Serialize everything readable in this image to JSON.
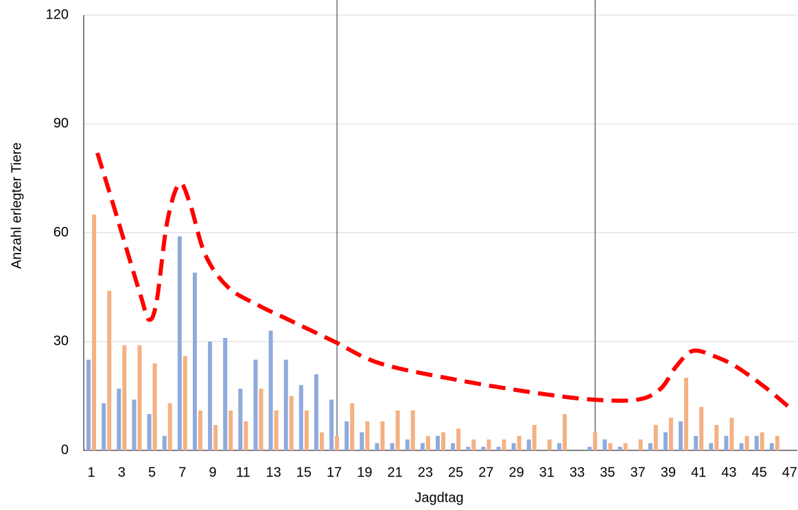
{
  "chart_data": {
    "type": "bar",
    "x_label": "Jagdtag",
    "y_label": "Anzahl erlegter Tiere",
    "categories": [
      "1",
      null,
      "3",
      null,
      "5",
      null,
      "7",
      null,
      "9",
      null,
      "11",
      null,
      "13",
      null,
      "15",
      null,
      "17",
      null,
      "19",
      null,
      "21",
      null,
      "23",
      null,
      "25",
      null,
      "27",
      null,
      "29",
      null,
      "31",
      null,
      "33",
      null,
      "35",
      null,
      "37",
      null,
      "39",
      null,
      "41",
      null,
      "43",
      null,
      "45",
      null,
      "47"
    ],
    "series": [
      {
        "color": "#8faadc",
        "values": [
          25,
          13,
          17,
          14,
          10,
          4,
          59,
          49,
          30,
          31,
          17,
          25,
          33,
          25,
          18,
          21,
          14,
          8,
          5,
          2,
          2,
          3,
          2,
          4,
          2,
          1,
          1,
          1,
          2,
          3,
          0,
          2,
          0,
          1,
          3,
          1,
          0,
          2,
          5,
          8,
          4,
          2,
          4,
          2,
          4,
          2,
          0
        ]
      },
      {
        "color": "#f4b183",
        "values": [
          65,
          44,
          29,
          29,
          24,
          13,
          26,
          11,
          7,
          11,
          8,
          17,
          11,
          15,
          11,
          5,
          4,
          13,
          8,
          8,
          11,
          11,
          4,
          5,
          6,
          3,
          3,
          3,
          4,
          7,
          3,
          10,
          0,
          5,
          2,
          2,
          3,
          7,
          9,
          20,
          12,
          7,
          9,
          4,
          5,
          4,
          0
        ]
      }
    ],
    "trend": {
      "color": "#ff0000",
      "x": [
        1.4,
        2.5,
        3.5,
        4.3,
        4.8,
        5.3,
        6,
        6.8,
        7.5,
        8.5,
        10,
        12,
        14,
        17,
        20,
        25,
        30,
        34,
        37,
        38.5,
        39.5,
        40.6,
        42,
        43.5,
        45.5,
        47.2
      ],
      "values": [
        82,
        67,
        53,
        42,
        36,
        41,
        63,
        73.5,
        68,
        54,
        45,
        40,
        36,
        30,
        24,
        19.5,
        16,
        14,
        14,
        17,
        23,
        27.4,
        26,
        23,
        17,
        11
      ]
    },
    "vlines": [
      17,
      34
    ],
    "ylim": [
      0,
      120
    ],
    "yticks": [
      0,
      30,
      60,
      90,
      120
    ],
    "grid": true
  }
}
